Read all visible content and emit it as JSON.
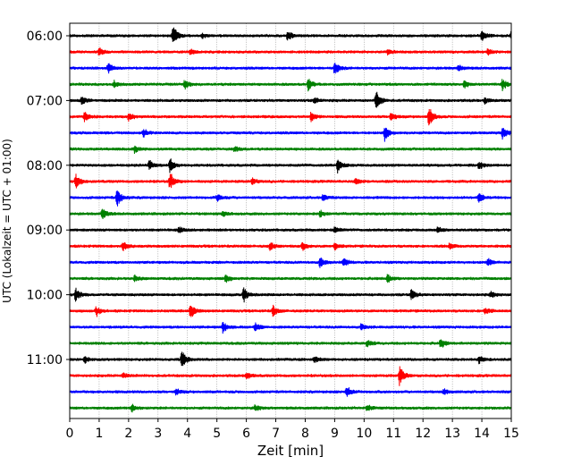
{
  "chart_data": {
    "type": "line",
    "title": "",
    "xlabel": "Zeit  [min]",
    "ylabel": "UTC (Lokalzeit = UTC + 01:00)",
    "xlim": [
      0,
      15
    ],
    "x_ticks": [
      "0",
      "1",
      "2",
      "3",
      "4",
      "5",
      "6",
      "7",
      "8",
      "9",
      "10",
      "11",
      "12",
      "13",
      "14",
      "15"
    ],
    "y_tick_labels": [
      "06:00",
      "07:00",
      "08:00",
      "09:00",
      "10:00",
      "11:00"
    ],
    "grid": "vertical dotted",
    "color_cycle": [
      "#000000",
      "#ff0000",
      "#0000ff",
      "#008000"
    ],
    "traces": [
      {
        "start": "06:00",
        "events": [
          {
            "x": 3.5,
            "a": 1.0
          },
          {
            "x": 7.4,
            "a": 0.5
          },
          {
            "x": 14.0,
            "a": 0.5
          },
          {
            "x": 15.0,
            "a": 0.4
          },
          {
            "x": 4.5,
            "a": 0.25
          }
        ]
      },
      {
        "start": "06:15",
        "events": [
          {
            "x": 1.0,
            "a": 0.35
          },
          {
            "x": 4.1,
            "a": 0.3
          },
          {
            "x": 10.8,
            "a": 0.3
          },
          {
            "x": 14.2,
            "a": 0.3
          }
        ]
      },
      {
        "start": "06:30",
        "events": [
          {
            "x": 1.3,
            "a": 0.5
          },
          {
            "x": 9.0,
            "a": 0.7
          },
          {
            "x": 13.2,
            "a": 0.3
          }
        ]
      },
      {
        "start": "06:45",
        "events": [
          {
            "x": 1.5,
            "a": 0.3
          },
          {
            "x": 3.9,
            "a": 0.5
          },
          {
            "x": 8.1,
            "a": 0.6
          },
          {
            "x": 13.4,
            "a": 0.4
          },
          {
            "x": 14.7,
            "a": 0.6
          }
        ]
      },
      {
        "start": "07:00",
        "events": [
          {
            "x": 0.4,
            "a": 0.45
          },
          {
            "x": 10.4,
            "a": 1.0
          },
          {
            "x": 8.3,
            "a": 0.3
          },
          {
            "x": 14.1,
            "a": 0.3
          }
        ]
      },
      {
        "start": "07:15",
        "events": [
          {
            "x": 0.5,
            "a": 0.45
          },
          {
            "x": 2.0,
            "a": 0.4
          },
          {
            "x": 8.2,
            "a": 0.5
          },
          {
            "x": 10.9,
            "a": 0.45
          },
          {
            "x": 12.2,
            "a": 1.0
          }
        ]
      },
      {
        "start": "07:30",
        "events": [
          {
            "x": 2.5,
            "a": 0.4
          },
          {
            "x": 10.7,
            "a": 0.7
          },
          {
            "x": 14.7,
            "a": 0.6
          }
        ]
      },
      {
        "start": "07:45",
        "events": [
          {
            "x": 2.2,
            "a": 0.4
          },
          {
            "x": 5.6,
            "a": 0.3
          }
        ]
      },
      {
        "start": "08:00",
        "events": [
          {
            "x": 2.7,
            "a": 0.45
          },
          {
            "x": 3.4,
            "a": 0.7
          },
          {
            "x": 9.1,
            "a": 0.7
          },
          {
            "x": 13.9,
            "a": 0.4
          }
        ]
      },
      {
        "start": "08:15",
        "events": [
          {
            "x": 0.2,
            "a": 0.7
          },
          {
            "x": 3.4,
            "a": 0.9
          },
          {
            "x": 6.2,
            "a": 0.3
          },
          {
            "x": 9.7,
            "a": 0.35
          }
        ]
      },
      {
        "start": "08:30",
        "events": [
          {
            "x": 1.6,
            "a": 1.0
          },
          {
            "x": 5.0,
            "a": 0.35
          },
          {
            "x": 8.6,
            "a": 0.4
          },
          {
            "x": 13.9,
            "a": 0.5
          }
        ]
      },
      {
        "start": "08:45",
        "events": [
          {
            "x": 1.1,
            "a": 0.6
          },
          {
            "x": 5.2,
            "a": 0.25
          },
          {
            "x": 8.5,
            "a": 0.3
          }
        ]
      },
      {
        "start": "09:00",
        "events": [
          {
            "x": 3.7,
            "a": 0.3
          },
          {
            "x": 9.0,
            "a": 0.3
          },
          {
            "x": 12.5,
            "a": 0.25
          }
        ]
      },
      {
        "start": "09:15",
        "events": [
          {
            "x": 1.8,
            "a": 0.45
          },
          {
            "x": 6.8,
            "a": 0.4
          },
          {
            "x": 7.9,
            "a": 0.4
          },
          {
            "x": 9.0,
            "a": 0.4
          },
          {
            "x": 12.9,
            "a": 0.3
          }
        ]
      },
      {
        "start": "09:30",
        "events": [
          {
            "x": 8.5,
            "a": 0.55
          },
          {
            "x": 9.3,
            "a": 0.45
          },
          {
            "x": 14.2,
            "a": 0.35
          }
        ]
      },
      {
        "start": "09:45",
        "events": [
          {
            "x": 2.2,
            "a": 0.3
          },
          {
            "x": 5.3,
            "a": 0.4
          },
          {
            "x": 10.8,
            "a": 0.4
          }
        ]
      },
      {
        "start": "10:00",
        "events": [
          {
            "x": 0.2,
            "a": 0.7
          },
          {
            "x": 5.9,
            "a": 0.7
          },
          {
            "x": 11.6,
            "a": 0.6
          },
          {
            "x": 14.3,
            "a": 0.3
          }
        ]
      },
      {
        "start": "10:15",
        "events": [
          {
            "x": 0.9,
            "a": 0.5
          },
          {
            "x": 4.1,
            "a": 0.8
          },
          {
            "x": 6.9,
            "a": 0.55
          },
          {
            "x": 14.1,
            "a": 0.4
          }
        ]
      },
      {
        "start": "10:30",
        "events": [
          {
            "x": 5.2,
            "a": 0.6
          },
          {
            "x": 6.3,
            "a": 0.4
          },
          {
            "x": 9.9,
            "a": 0.3
          }
        ]
      },
      {
        "start": "10:45",
        "events": [
          {
            "x": 10.1,
            "a": 0.35
          },
          {
            "x": 12.6,
            "a": 0.5
          }
        ]
      },
      {
        "start": "11:00",
        "events": [
          {
            "x": 3.8,
            "a": 1.0
          },
          {
            "x": 0.5,
            "a": 0.35
          },
          {
            "x": 8.3,
            "a": 0.3
          },
          {
            "x": 13.9,
            "a": 0.35
          }
        ]
      },
      {
        "start": "11:15",
        "events": [
          {
            "x": 11.2,
            "a": 1.0
          },
          {
            "x": 6.0,
            "a": 0.35
          },
          {
            "x": 1.8,
            "a": 0.3
          }
        ]
      },
      {
        "start": "11:30",
        "events": [
          {
            "x": 9.4,
            "a": 0.6
          },
          {
            "x": 3.6,
            "a": 0.3
          },
          {
            "x": 12.7,
            "a": 0.3
          }
        ]
      },
      {
        "start": "11:45",
        "events": [
          {
            "x": 2.1,
            "a": 0.45
          },
          {
            "x": 6.3,
            "a": 0.3
          },
          {
            "x": 10.1,
            "a": 0.3
          }
        ]
      }
    ]
  }
}
